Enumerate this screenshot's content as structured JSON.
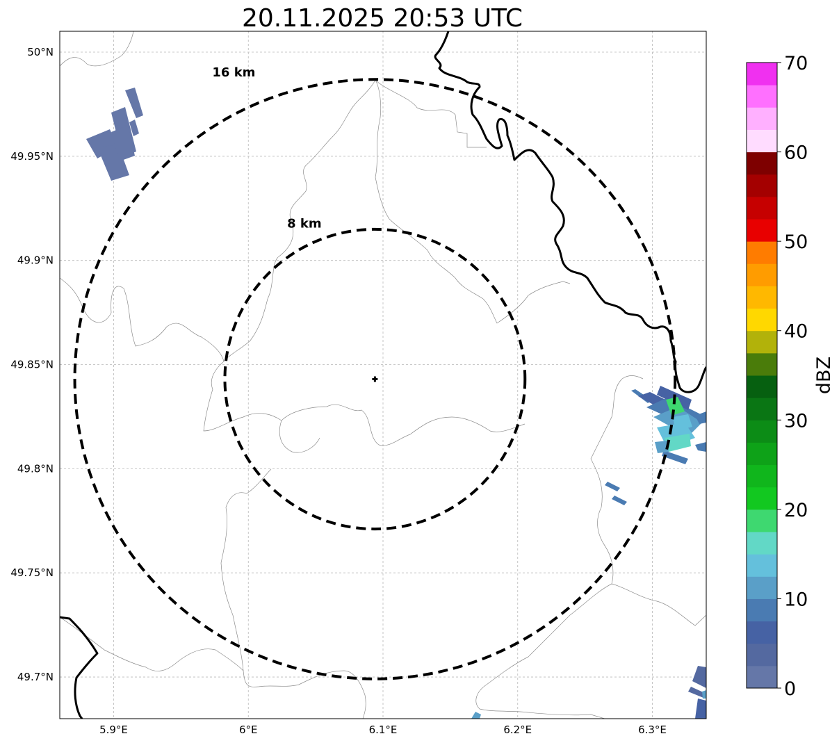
{
  "title": "20.11.2025 20:53 UTC",
  "map": {
    "lon_range": [
      5.86,
      6.34
    ],
    "lat_range": [
      49.68,
      50.01
    ],
    "lon_ticks": [
      {
        "value": 5.9,
        "label": "5.9°E"
      },
      {
        "value": 6.0,
        "label": "6°E"
      },
      {
        "value": 6.1,
        "label": "6.1°E"
      },
      {
        "value": 6.2,
        "label": "6.2°E"
      },
      {
        "value": 6.3,
        "label": "6.3°E"
      }
    ],
    "lat_ticks": [
      {
        "value": 49.7,
        "label": "49.7°N"
      },
      {
        "value": 49.75,
        "label": "49.75°N"
      },
      {
        "value": 49.8,
        "label": "49.8°N"
      },
      {
        "value": 49.85,
        "label": "49.85°N"
      },
      {
        "value": 49.9,
        "label": "49.9°N"
      },
      {
        "value": 49.95,
        "label": "49.95°N"
      },
      {
        "value": 50.0,
        "label": "50°N"
      }
    ],
    "radar_site": {
      "lon": 6.094,
      "lat": 49.843
    },
    "range_rings": [
      {
        "radius_km": 8,
        "label": "8 km"
      },
      {
        "radius_km": 16,
        "label": "16 km"
      }
    ]
  },
  "colorbar": {
    "label": "dBZ",
    "min": 0,
    "max": 70,
    "ticks": [
      0,
      10,
      20,
      30,
      40,
      50,
      60,
      70
    ],
    "colors": [
      "#6577a8",
      "#5469a0",
      "#4662a4",
      "#4a7bb2",
      "#5a9fc8",
      "#64c0dc",
      "#62d8c6",
      "#3ed870",
      "#12c820",
      "#10b61c",
      "#0ea218",
      "#0c8c16",
      "#0a7614",
      "#066010",
      "#4a7c0a",
      "#b2b20a",
      "#ffd800",
      "#ffb800",
      "#ff9c00",
      "#ff7c00",
      "#e80000",
      "#c60000",
      "#a40000",
      "#7e0000",
      "#ffdcff",
      "#ffb0ff",
      "#ff70ff",
      "#f030f0"
    ]
  },
  "echoes": [
    {
      "region": "north-west",
      "dbz": 3
    },
    {
      "region": "east",
      "dbz": 18
    },
    {
      "region": "south-east",
      "dbz": 6
    }
  ]
}
